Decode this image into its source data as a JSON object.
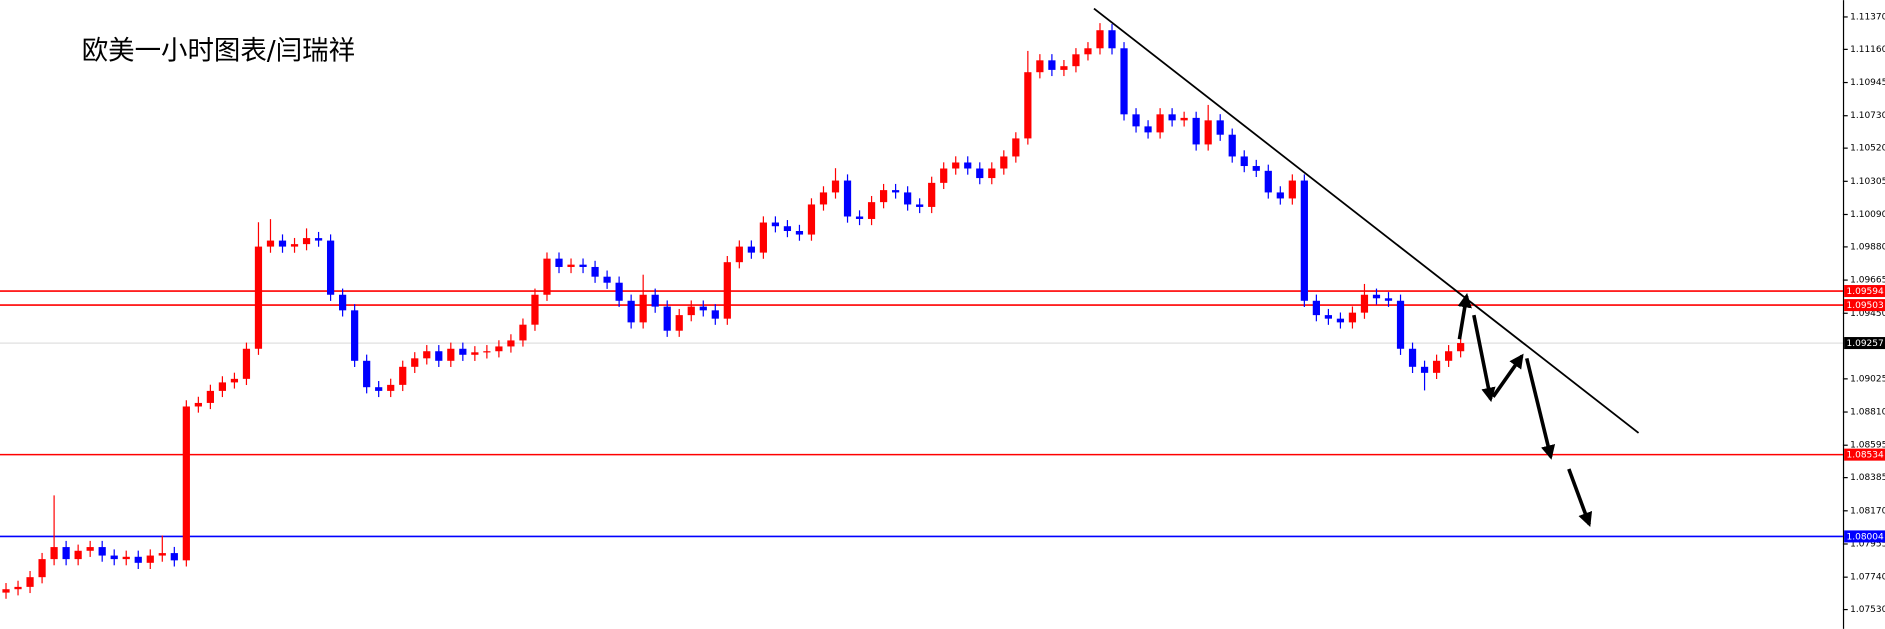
{
  "chart_data": {
    "type": "candlestick",
    "title": "欧美一小时图表/闫瑞祥",
    "up_color": "#ff0000",
    "down_color": "#0000ff",
    "open": [
      1.0764,
      1.07662,
      1.07677,
      1.0774,
      1.07857,
      1.07935,
      1.07857,
      1.07911,
      1.07935,
      1.0788,
      1.07857,
      1.07872,
      1.07833,
      1.0788,
      1.07896,
      1.07849,
      1.08846,
      1.08869,
      1.08947,
      1.09002,
      1.09025,
      1.0922,
      1.09882,
      1.09921,
      1.09882,
      1.09898,
      1.09937,
      1.09921,
      1.0957,
      1.09469,
      1.09142,
      1.08971,
      1.08947,
      1.08986,
      1.09103,
      1.09158,
      1.09204,
      1.09142,
      1.0922,
      1.09181,
      1.09197,
      1.09204,
      1.09235,
      1.09274,
      1.09376,
      1.0957,
      1.09804,
      1.0975,
      1.09765,
      1.0975,
      1.09687,
      1.09648,
      1.09531,
      1.09391,
      1.0957,
      1.09493,
      1.09337,
      1.09438,
      1.09493,
      1.09469,
      1.09415,
      1.09781,
      1.09882,
      1.09843,
      1.10038,
      1.10014,
      1.09983,
      1.0996,
      1.10155,
      1.10233,
      1.1031,
      1.10077,
      1.10061,
      1.1017,
      1.10248,
      1.10233,
      1.10155,
      1.10139,
      1.10295,
      1.10388,
      1.10427,
      1.10388,
      1.10326,
      1.10388,
      1.10466,
      1.10583,
      1.11012,
      1.11089,
      1.11027,
      1.11051,
      1.11128,
      1.11167,
      1.11284,
      1.11167,
      1.10739,
      1.10661,
      1.10622,
      1.10739,
      1.107,
      1.10716,
      1.10544,
      1.107,
      1.10607,
      1.10466,
      1.10404,
      1.10373,
      1.10233,
      1.10194,
      1.1031,
      1.09531,
      1.09438,
      1.09415,
      1.09391,
      1.09454,
      1.0957,
      1.09547,
      1.09531,
      1.0922,
      1.09103,
      1.09064,
      1.09142,
      1.09204
    ],
    "high": [
      1.07702,
      1.07717,
      1.0778,
      1.07897,
      1.0827,
      1.07975,
      1.07951,
      1.07975,
      1.07975,
      1.0792,
      1.07912,
      1.07912,
      1.0792,
      1.0801,
      1.07936,
      1.08886,
      1.08909,
      1.08987,
      1.09042,
      1.09065,
      1.0926,
      1.1004,
      1.1006,
      1.09961,
      1.09938,
      1.1,
      1.09977,
      1.09961,
      1.0961,
      1.09509,
      1.09182,
      1.09011,
      1.09026,
      1.09143,
      1.09198,
      1.09244,
      1.09244,
      1.0926,
      1.0926,
      1.09237,
      1.09244,
      1.09275,
      1.09314,
      1.09416,
      1.0961,
      1.09844,
      1.09844,
      1.09805,
      1.09805,
      1.0979,
      1.09727,
      1.09688,
      1.09571,
      1.097,
      1.0961,
      1.09533,
      1.09478,
      1.09533,
      1.09533,
      1.09509,
      1.09821,
      1.09922,
      1.09922,
      1.10078,
      1.10078,
      1.10054,
      1.10023,
      1.10195,
      1.10273,
      1.1039,
      1.1035,
      1.10117,
      1.1021,
      1.10288,
      1.10288,
      1.10273,
      1.10195,
      1.10335,
      1.10428,
      1.10467,
      1.10467,
      1.10428,
      1.10428,
      1.10506,
      1.10623,
      1.1115,
      1.11129,
      1.11129,
      1.11091,
      1.11168,
      1.11207,
      1.1133,
      1.11324,
      1.11207,
      1.10779,
      1.10701,
      1.10779,
      1.10779,
      1.10756,
      1.10756,
      1.108,
      1.1074,
      1.10647,
      1.10506,
      1.10444,
      1.10413,
      1.10273,
      1.1035,
      1.1035,
      1.09571,
      1.09478,
      1.09455,
      1.09494,
      1.0964,
      1.0961,
      1.09587,
      1.09571,
      1.0926,
      1.09143,
      1.09182,
      1.09244,
      1.09297
    ],
    "low": [
      1.076,
      1.07622,
      1.07637,
      1.077,
      1.07817,
      1.07817,
      1.07817,
      1.07871,
      1.0784,
      1.07817,
      1.07817,
      1.07793,
      1.07793,
      1.0784,
      1.07809,
      1.07809,
      1.08806,
      1.08829,
      1.08907,
      1.08962,
      1.08985,
      1.0918,
      1.09842,
      1.09842,
      1.09842,
      1.09858,
      1.09881,
      1.0953,
      1.09429,
      1.09102,
      1.08931,
      1.08907,
      1.08907,
      1.08946,
      1.09063,
      1.09118,
      1.09102,
      1.09102,
      1.09141,
      1.09141,
      1.09157,
      1.09164,
      1.09195,
      1.09234,
      1.09336,
      1.0953,
      1.0971,
      1.0971,
      1.0971,
      1.09647,
      1.09608,
      1.09491,
      1.09351,
      1.09351,
      1.09453,
      1.09297,
      1.09297,
      1.09398,
      1.09429,
      1.09375,
      1.09375,
      1.09741,
      1.09803,
      1.09803,
      1.09974,
      1.09943,
      1.0992,
      1.0992,
      1.10115,
      1.10193,
      1.10037,
      1.10021,
      1.10021,
      1.1013,
      1.10193,
      1.10115,
      1.10099,
      1.10099,
      1.10255,
      1.10348,
      1.10348,
      1.10286,
      1.10286,
      1.10348,
      1.10426,
      1.10543,
      1.10972,
      1.10987,
      1.10987,
      1.11011,
      1.11088,
      1.11127,
      1.11127,
      1.10699,
      1.10621,
      1.10582,
      1.10582,
      1.1066,
      1.1066,
      1.10504,
      1.10504,
      1.10567,
      1.10426,
      1.10364,
      1.10333,
      1.10193,
      1.10154,
      1.10154,
      1.09491,
      1.09398,
      1.09375,
      1.09351,
      1.09351,
      1.09414,
      1.09507,
      1.09491,
      1.0918,
      1.09063,
      1.0895,
      1.09024,
      1.09102,
      1.09164
    ],
    "close": [
      1.07662,
      1.07677,
      1.0774,
      1.07857,
      1.07935,
      1.07857,
      1.07911,
      1.07935,
      1.0788,
      1.07857,
      1.07872,
      1.07833,
      1.0788,
      1.07896,
      1.07849,
      1.08846,
      1.08869,
      1.08947,
      1.09002,
      1.09025,
      1.0922,
      1.09882,
      1.09921,
      1.09882,
      1.09898,
      1.09937,
      1.09921,
      1.0957,
      1.09469,
      1.09142,
      1.08971,
      1.08947,
      1.08986,
      1.09103,
      1.09158,
      1.09204,
      1.09142,
      1.0922,
      1.09181,
      1.09197,
      1.09204,
      1.09235,
      1.09274,
      1.09376,
      1.0957,
      1.09804,
      1.0975,
      1.09765,
      1.0975,
      1.09687,
      1.09648,
      1.09531,
      1.09391,
      1.0957,
      1.09493,
      1.09337,
      1.09438,
      1.09493,
      1.09469,
      1.09415,
      1.09781,
      1.09882,
      1.09843,
      1.10038,
      1.10014,
      1.09983,
      1.0996,
      1.10155,
      1.10233,
      1.1031,
      1.10077,
      1.10061,
      1.1017,
      1.10248,
      1.10233,
      1.10155,
      1.10139,
      1.10295,
      1.10388,
      1.10427,
      1.10388,
      1.10326,
      1.10388,
      1.10466,
      1.10583,
      1.11012,
      1.11089,
      1.11027,
      1.11051,
      1.11128,
      1.11167,
      1.11284,
      1.11167,
      1.10739,
      1.10661,
      1.10622,
      1.10739,
      1.107,
      1.10716,
      1.10544,
      1.107,
      1.10607,
      1.10466,
      1.10404,
      1.10373,
      1.10233,
      1.10194,
      1.1031,
      1.09531,
      1.09438,
      1.09415,
      1.09391,
      1.09454,
      1.0957,
      1.09547,
      1.09531,
      1.0922,
      1.09103,
      1.09064,
      1.09142,
      1.09204,
      1.09257
    ],
    "ylim": [
      1.07405,
      1.11479
    ],
    "yticks": [
      {
        "value": 1.0753,
        "label": "1.07530"
      },
      {
        "value": 1.0774,
        "label": "1.07740"
      },
      1.07955,
      {
        "value": 1.0817,
        "label": "1.08170"
      },
      1.08385,
      1.08595,
      {
        "value": 1.0881,
        "label": "1.08810"
      },
      1.09025,
      {
        "value": 1.0945,
        "label": "1.09450"
      },
      1.09665,
      {
        "value": 1.0988,
        "label": "1.09880"
      },
      {
        "value": 1.1009,
        "label": "1.10090"
      },
      1.10305,
      {
        "value": 1.1052,
        "label": "1.10520"
      },
      {
        "value": 1.1073,
        "label": "1.10730"
      },
      1.10945,
      {
        "value": 1.1116,
        "label": "1.11160"
      },
      {
        "value": 1.1137,
        "label": "1.11370"
      }
    ],
    "levels": [
      {
        "value": 1.09594,
        "color": "#ff0000"
      },
      {
        "value": 1.09503,
        "color": "#ff0000"
      },
      {
        "value": 1.08534,
        "color": "#ff0000"
      },
      {
        "value": 1.08004,
        "color": "#0000ff"
      },
      {
        "value": 1.09257,
        "color": "#c0c0c0"
      }
    ]
  }
}
